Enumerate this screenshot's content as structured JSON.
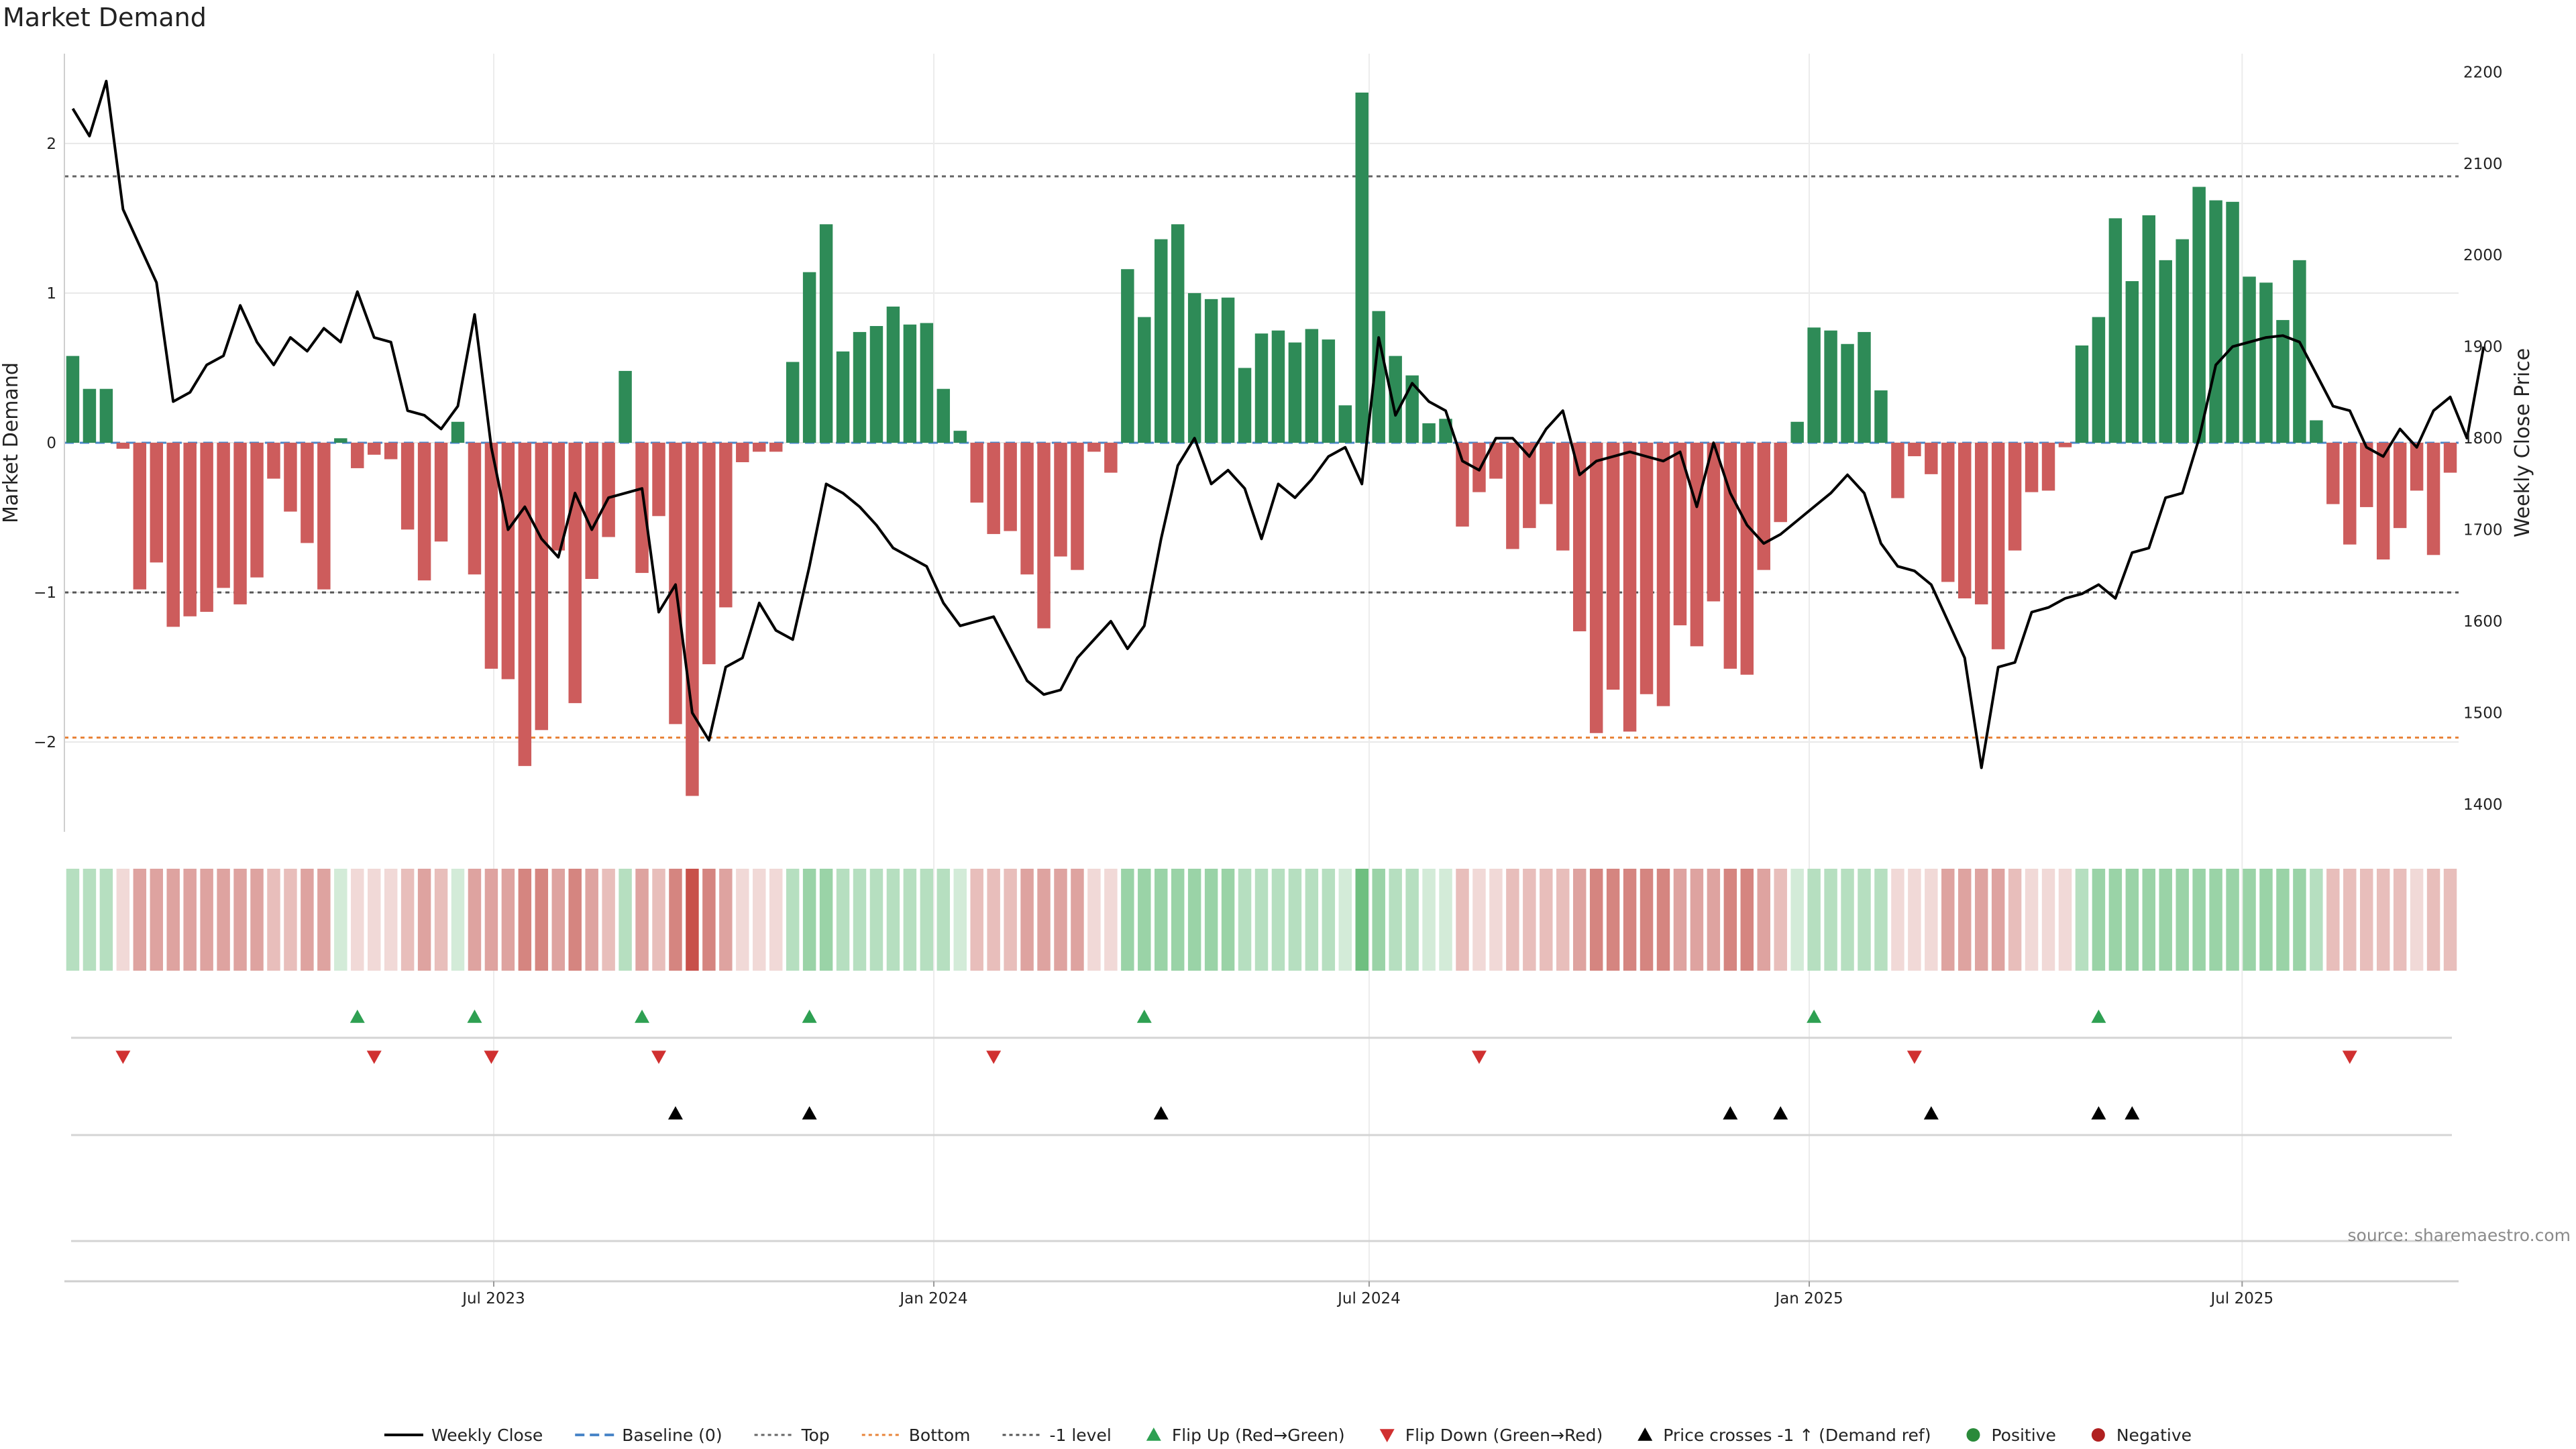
{
  "chart_data": {
    "title": "Market Demand",
    "type": "bar",
    "left_axis": {
      "label": "Market Demand",
      "ylim": [
        -2.6,
        2.6
      ],
      "ticks": [
        -2,
        -1,
        0,
        1,
        2
      ],
      "tick_labels": [
        "−2",
        "−1",
        "0",
        "1",
        "2"
      ]
    },
    "right_axis": {
      "label": "Weekly Close Price",
      "ylim": [
        1370,
        2220
      ],
      "ticks": [
        1400,
        1500,
        1600,
        1700,
        1800,
        1900,
        2000,
        2100,
        2200
      ],
      "tick_labels": [
        "1400",
        "1500",
        "1600",
        "1700",
        "1800",
        "1900",
        "2000",
        "2100",
        "2200"
      ]
    },
    "x_axis": {
      "start": "2023-01-06",
      "weeks": 145,
      "ticks": [
        "2023-07-01",
        "2024-01-01",
        "2024-07-01",
        "2025-01-01",
        "2025-07-01"
      ],
      "tick_labels": [
        "Jul 2023",
        "Jan 2024",
        "Jul 2024",
        "Jan 2025",
        "Jul 2025"
      ]
    },
    "reference_lines": {
      "top": 1.78,
      "bottom": -1.97,
      "minus_one": -1.0,
      "baseline": 0
    },
    "demand": [
      0.58,
      0.36,
      0.36,
      -0.04,
      -0.98,
      -0.8,
      -1.23,
      -1.16,
      -1.13,
      -0.97,
      -1.08,
      -0.9,
      -0.24,
      -0.46,
      -0.67,
      -0.98,
      0.03,
      -0.17,
      -0.08,
      -0.11,
      -0.58,
      -0.92,
      -0.66,
      0.14,
      -0.88,
      -1.51,
      -1.58,
      -2.16,
      -1.92,
      -0.72,
      -1.74,
      -0.91,
      -0.63,
      0.48,
      -0.87,
      -0.49,
      -1.88,
      -2.36,
      -1.48,
      -1.1,
      -0.13,
      -0.06,
      -0.06,
      0.54,
      1.14,
      1.46,
      0.61,
      0.74,
      0.78,
      0.91,
      0.79,
      0.8,
      0.36,
      0.08,
      -0.4,
      -0.61,
      -0.59,
      -0.88,
      -1.24,
      -0.76,
      -0.85,
      -0.06,
      -0.2,
      1.16,
      0.84,
      1.36,
      1.46,
      1.0,
      0.96,
      0.97,
      0.5,
      0.73,
      0.75,
      0.67,
      0.76,
      0.69,
      0.25,
      2.34,
      0.88,
      0.58,
      0.45,
      0.13,
      0.16,
      -0.56,
      -0.33,
      -0.24,
      -0.71,
      -0.57,
      -0.41,
      -0.72,
      -1.26,
      -1.94,
      -1.65,
      -1.93,
      -1.68,
      -1.76,
      -1.22,
      -1.36,
      -1.06,
      -1.51,
      -1.55,
      -0.85,
      -0.53,
      0.14,
      0.77,
      0.75,
      0.66,
      0.74,
      0.35,
      -0.37,
      -0.09,
      -0.21,
      -0.93,
      -1.04,
      -1.08,
      -1.38,
      -0.72,
      -0.33,
      -0.32,
      -0.03,
      0.65,
      0.84,
      1.5,
      1.08,
      1.52,
      1.22,
      1.36,
      1.71,
      1.62,
      1.61,
      1.11,
      1.07,
      0.82,
      1.22,
      0.15,
      -0.41,
      -0.68,
      -0.43,
      -0.78,
      -0.57,
      -0.32,
      -0.75,
      -0.2
    ],
    "series": [
      {
        "name": "Weekly Close",
        "values": [
          2160,
          2130,
          2190,
          2050,
          2010,
          1970,
          1840,
          1850,
          1880,
          1890,
          1945,
          1905,
          1880,
          1910,
          1895,
          1920,
          1905,
          1960,
          1910,
          1905,
          1830,
          1825,
          1810,
          1835,
          1935,
          1790,
          1700,
          1725,
          1690,
          1670,
          1740,
          1700,
          1735,
          1740,
          1745,
          1610,
          1640,
          1500,
          1470,
          1550,
          1560,
          1620,
          1590,
          1580,
          1660,
          1750,
          1740,
          1725,
          1705,
          1680,
          1670,
          1660,
          1620,
          1595,
          1600,
          1605,
          1570,
          1535,
          1520,
          1525,
          1560,
          1580,
          1600,
          1570,
          1595,
          1690,
          1770,
          1800,
          1750,
          1765,
          1745,
          1690,
          1750,
          1735,
          1755,
          1780,
          1790,
          1750,
          1910,
          1825,
          1860,
          1840,
          1830,
          1775,
          1765,
          1800,
          1800,
          1780,
          1810,
          1830,
          1760,
          1775,
          1780,
          1785,
          1780,
          1775,
          1785,
          1725,
          1795,
          1740,
          1705,
          1685,
          1695,
          1710,
          1725,
          1740,
          1760,
          1740,
          1685,
          1660,
          1655,
          1640,
          1600,
          1560,
          1440,
          1550,
          1555,
          1610,
          1615,
          1625,
          1630,
          1640,
          1625,
          1675,
          1680,
          1735,
          1740,
          1800,
          1880,
          1900,
          1905,
          1910,
          1912,
          1905,
          1870,
          1835,
          1830,
          1790,
          1780,
          1810,
          1790,
          1830,
          1845,
          1800,
          1900
        ]
      }
    ],
    "flip_up_weeks": [
      17,
      24,
      34,
      44,
      64,
      104,
      121
    ],
    "flip_down_weeks": [
      3,
      18,
      25,
      35,
      55,
      84,
      110,
      136
    ],
    "price_cross_weeks": [
      36,
      44,
      65,
      99,
      102,
      111,
      121,
      123
    ],
    "heat_levels": [
      2,
      2,
      2,
      1,
      3,
      3,
      3,
      3,
      3,
      3,
      3,
      3,
      2,
      2,
      3,
      3,
      1,
      1,
      1,
      1,
      2,
      3,
      2,
      1,
      3,
      3,
      3,
      4,
      4,
      3,
      4,
      3,
      2,
      2,
      3,
      2,
      4,
      5,
      4,
      3,
      1,
      1,
      1,
      2,
      3,
      3,
      2,
      2,
      2,
      2,
      2,
      2,
      2,
      1,
      2,
      2,
      2,
      3,
      3,
      3,
      3,
      1,
      1,
      3,
      3,
      3,
      3,
      3,
      3,
      3,
      2,
      2,
      2,
      2,
      2,
      2,
      1,
      4,
      3,
      2,
      2,
      1,
      1,
      2,
      1,
      1,
      2,
      2,
      2,
      2,
      3,
      4,
      4,
      4,
      4,
      4,
      3,
      3,
      3,
      4,
      4,
      3,
      2,
      1,
      2,
      2,
      2,
      2,
      2,
      1,
      1,
      1,
      3,
      3,
      3,
      3,
      2,
      1,
      1,
      1,
      2,
      3,
      3,
      3,
      3,
      3,
      3,
      3,
      3,
      3,
      3,
      3,
      3,
      3,
      2,
      2,
      2,
      2,
      2,
      2,
      1,
      2,
      2
    ],
    "legend": [
      {
        "label": "Weekly Close",
        "kind": "line-solid",
        "color": "#000000"
      },
      {
        "label": "Baseline (0)",
        "kind": "line-dash",
        "color": "#4a86c8"
      },
      {
        "label": "Top",
        "kind": "line-dot",
        "color": "#666666"
      },
      {
        "label": "Bottom",
        "kind": "line-dot",
        "color": "#e8843a"
      },
      {
        "label": "-1 level",
        "kind": "line-dot",
        "color": "#555555"
      },
      {
        "label": "Flip Up (Red→Green)",
        "kind": "triangle-up",
        "color": "#2ea052"
      },
      {
        "label": "Flip Down (Green→Red)",
        "kind": "triangle-down",
        "color": "#d03030"
      },
      {
        "label": "Price crosses -1 ↑ (Demand ref)",
        "kind": "triangle-up",
        "color": "#000000"
      },
      {
        "label": "Positive",
        "kind": "dot",
        "color": "#2a8a3a"
      },
      {
        "label": "Negative",
        "kind": "dot",
        "color": "#b02020"
      }
    ],
    "colors": {
      "positive_bar": "#2e8b57",
      "negative_bar": "#cd5c5c",
      "strip_positive": "#3f9f55",
      "strip_negative": "#c8504a",
      "grid": "#e8e8e8"
    },
    "source": "source: sharemaestro.com"
  }
}
